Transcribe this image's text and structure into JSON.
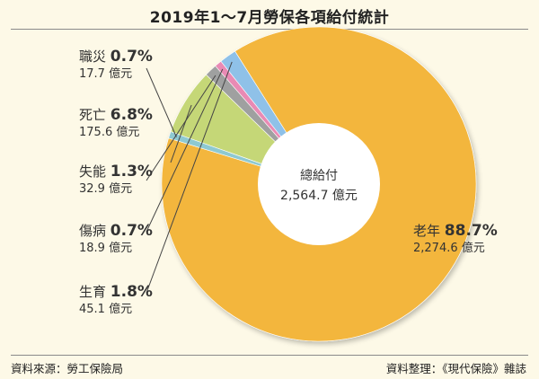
{
  "title": "2019年1～7月勞保各項給付統計",
  "source_left": "資料來源：勞工保險局",
  "source_right": "資料整理：《現代保險》雜誌",
  "chart_data": {
    "type": "pie",
    "title": "2019年1～7月勞保各項給付統計",
    "unit": "億元",
    "center_label": "總給付",
    "total_label": "2,564.7 億元",
    "total": 2564.7,
    "slices": [
      {
        "name": "老年",
        "percent_label": "88.7%",
        "value_label": "2,274.6 億元",
        "value": 2274.6,
        "color": "#f3b63c"
      },
      {
        "name": "生育",
        "percent_label": "1.8%",
        "value_label": "45.1 億元",
        "value": 45.1,
        "color": "#8fc1e8"
      },
      {
        "name": "傷病",
        "percent_label": "0.7%",
        "value_label": "18.9 億元",
        "value": 18.9,
        "color": "#e98ab4"
      },
      {
        "name": "失能",
        "percent_label": "1.3%",
        "value_label": "32.9 億元",
        "value": 32.9,
        "color": "#9fa0a0"
      },
      {
        "name": "死亡",
        "percent_label": "6.8%",
        "value_label": "175.6 億元",
        "value": 175.6,
        "color": "#c5d777"
      },
      {
        "name": "職災",
        "percent_label": "0.7%",
        "value_label": "17.7 億元",
        "value": 17.7,
        "color": "#8ec9d1"
      }
    ]
  }
}
